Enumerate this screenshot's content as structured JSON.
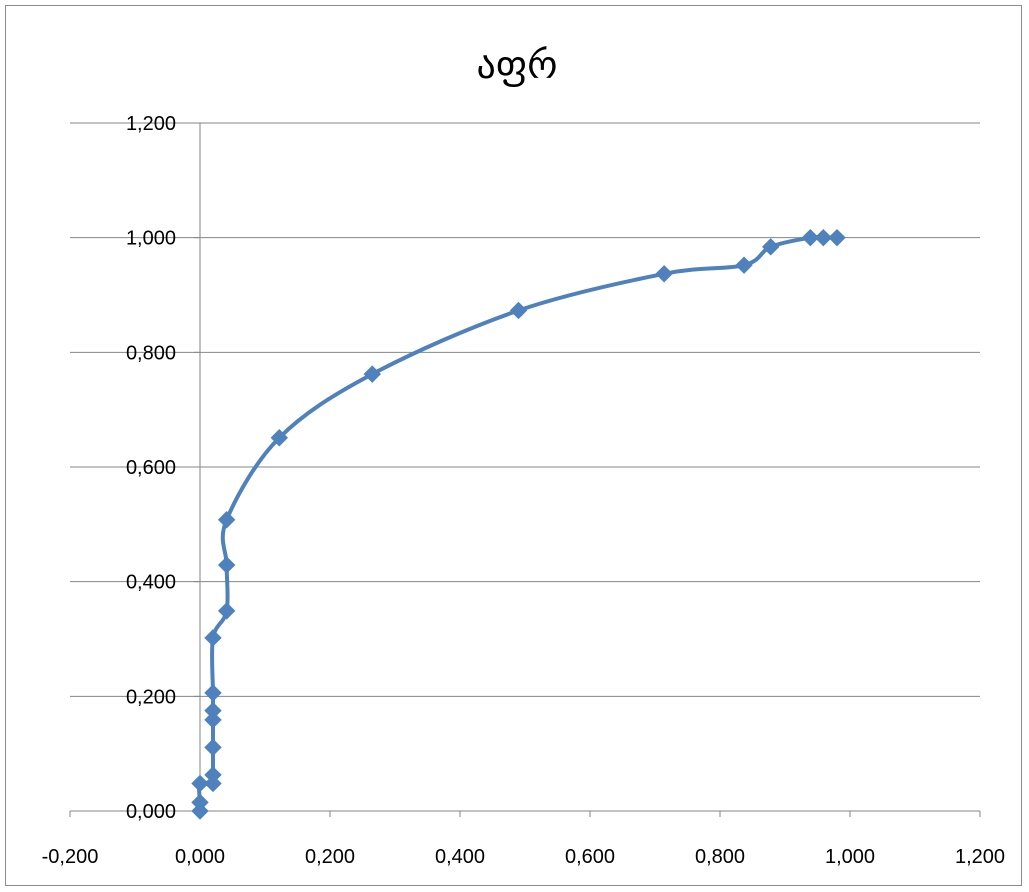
{
  "chart_data": {
    "type": "scatter",
    "title": "აფრ",
    "xlabel": "",
    "ylabel": "",
    "xlim": [
      -0.2,
      1.2
    ],
    "ylim": [
      0.0,
      1.2
    ],
    "x_ticks": [
      -0.2,
      0.0,
      0.2,
      0.4,
      0.6,
      0.8,
      1.0,
      1.2
    ],
    "x_tick_labels": [
      "-0,200",
      "0,000",
      "0,200",
      "0,400",
      "0,600",
      "0,800",
      "1,000",
      "1,200"
    ],
    "y_ticks": [
      0.0,
      0.2,
      0.4,
      0.6,
      0.8,
      1.0,
      1.2
    ],
    "y_tick_labels": [
      "0,000",
      "0,200",
      "0,400",
      "0,600",
      "0,800",
      "1,000",
      "1,200"
    ],
    "grid": "horizontal",
    "legend": "none",
    "smooth_line": true,
    "series": [
      {
        "color": "#4f81bd",
        "marker": "diamond",
        "points": [
          [
            0.0,
            0.0
          ],
          [
            0.0,
            0.015
          ],
          [
            0.0,
            0.048
          ],
          [
            0.02,
            0.048
          ],
          [
            0.02,
            0.063
          ],
          [
            0.02,
            0.111
          ],
          [
            0.02,
            0.159
          ],
          [
            0.02,
            0.175
          ],
          [
            0.02,
            0.206
          ],
          [
            0.02,
            0.302
          ],
          [
            0.041,
            0.349
          ],
          [
            0.041,
            0.429
          ],
          [
            0.041,
            0.508
          ],
          [
            0.122,
            0.651
          ],
          [
            0.265,
            0.762
          ],
          [
            0.49,
            0.873
          ],
          [
            0.714,
            0.937
          ],
          [
            0.837,
            0.952
          ],
          [
            0.878,
            0.984
          ],
          [
            0.939,
            1.0
          ],
          [
            0.959,
            1.0
          ],
          [
            0.98,
            1.0
          ]
        ]
      }
    ]
  }
}
